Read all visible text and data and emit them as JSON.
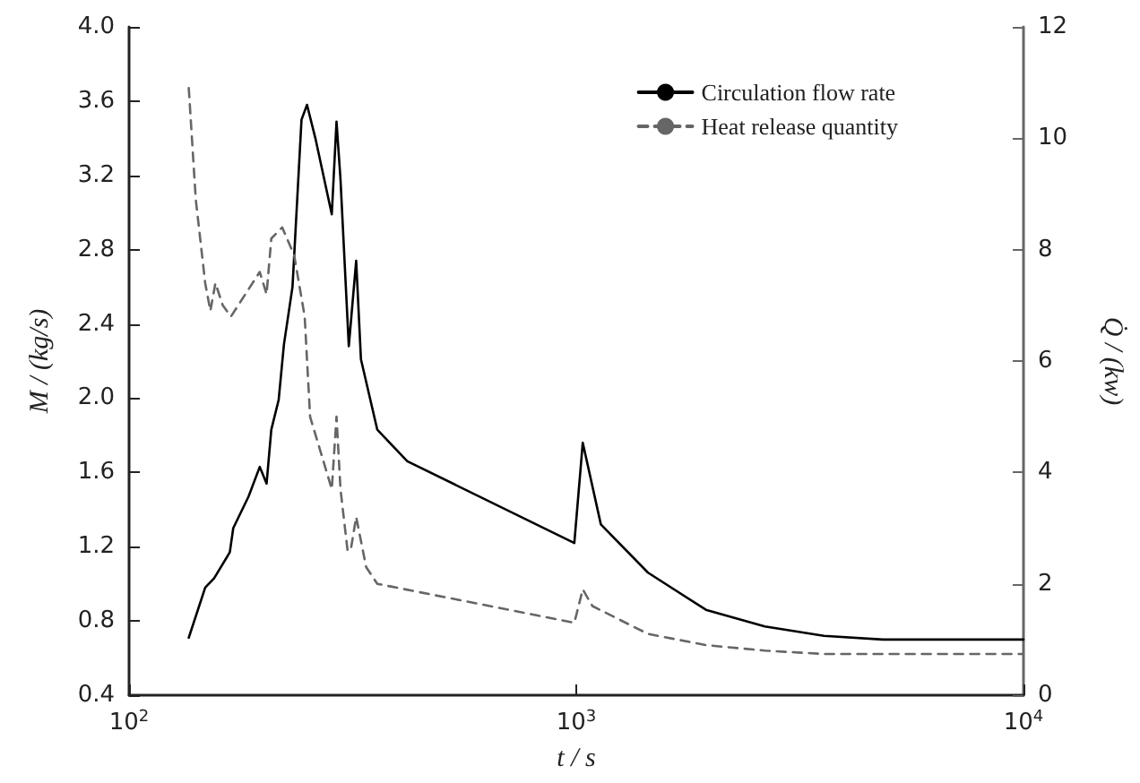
{
  "chart_data": {
    "type": "line",
    "xlabel": "t / s",
    "ylabel": "M / (kg/s)",
    "y2label": "Q̇ / (kw)",
    "log": "x",
    "grid": false,
    "legend": "top right",
    "marker": "none",
    "xlim": [
      100,
      10000
    ],
    "xticks": [
      {
        "value": 100,
        "label": "10$^{2}$"
      },
      {
        "value": 1000,
        "label": "10$^{3}$"
      },
      {
        "value": 10000,
        "label": "10$^{4}$"
      }
    ],
    "ylim": [
      0.4,
      4.0
    ],
    "yticks": [
      0.4,
      0.8,
      1.2,
      1.6,
      {
        "value": 2,
        "label": "2.0"
      },
      2.4,
      2.8,
      3.2,
      3.6,
      {
        "value": 4,
        "label": "4.0"
      }
    ],
    "y2lim": [
      0,
      12
    ],
    "y2ticks": [
      0,
      2,
      4,
      6,
      8,
      10,
      12
    ],
    "series": [
      {
        "name": "Circulation flow rate",
        "color": "#000000",
        "line_style": "solid",
        "x": [
          136,
          148,
          155,
          168,
          171,
          185,
          196,
          203,
          208,
          216,
          222,
          232,
          243,
          250,
          261,
          284,
          291,
          297,
          310,
          322,
          330,
          359,
          419,
          990,
          1034,
          1135,
          1447,
          1950,
          2640,
          3580,
          4850,
          10000
        ],
        "values": [
          0.71,
          0.98,
          1.03,
          1.17,
          1.3,
          1.47,
          1.63,
          1.54,
          1.83,
          1.99,
          2.29,
          2.6,
          3.5,
          3.58,
          3.4,
          2.99,
          3.49,
          3.18,
          2.28,
          2.74,
          2.21,
          1.83,
          1.66,
          1.22,
          1.76,
          1.32,
          1.06,
          0.86,
          0.77,
          0.72,
          0.7,
          0.7
        ]
      },
      {
        "name": "Heat release quantity",
        "color": "#666666",
        "line_style": "dashed",
        "axis": "y2",
        "x": [
          136,
          141,
          148,
          152,
          156,
          162,
          169,
          182,
          196,
          203,
          208,
          220,
          234,
          247,
          254,
          284,
          291,
          297,
          308,
          313,
          322,
          339,
          359,
          990,
          1034,
          1087,
          1447,
          1950,
          2640,
          3580,
          10000
        ],
        "values": [
          10.9,
          8.9,
          7.4,
          6.9,
          7.4,
          7.0,
          6.8,
          7.2,
          7.6,
          7.2,
          8.2,
          8.4,
          7.9,
          6.8,
          5.0,
          3.7,
          5.0,
          3.7,
          2.6,
          2.6,
          3.2,
          2.3,
          2.0,
          1.3,
          1.9,
          1.6,
          1.1,
          0.9,
          0.8,
          0.74,
          0.74
        ]
      }
    ]
  }
}
